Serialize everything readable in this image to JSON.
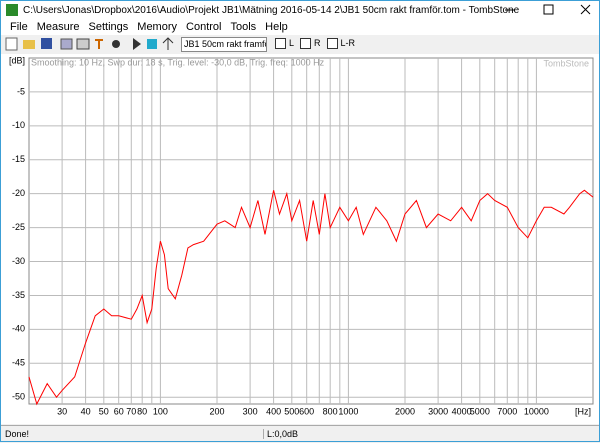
{
  "window": {
    "title": "C:\\Users\\Jonas\\Dropbox\\2016\\Audio\\Projekt JB1\\Mätning 2016-05-14 2\\JB1 50cm rakt framför.tom - TombStone"
  },
  "menu": [
    "File",
    "Measure",
    "Settings",
    "Memory",
    "Control",
    "Tools",
    "Help"
  ],
  "toolbar": {
    "name_field": "JB1 50cm rakt framför",
    "checkboxes": [
      "L",
      "R",
      "L-R"
    ]
  },
  "status": {
    "left": "Done!",
    "level": "L:0,0dB"
  },
  "chart_data": {
    "type": "line",
    "subtitle": "Smoothing: 10 Hz, Swp dur: 18 s, Trig. level: -30,0 dB, Trig. freq: 1000 Hz",
    "watermark": "TombStone",
    "y_label": "[dB]",
    "x_label": "[Hz]",
    "log_x": true,
    "grid": true,
    "xlim": [
      20,
      20000
    ],
    "ylim": [
      -51,
      0
    ],
    "yticks": [
      -5,
      -10,
      -15,
      -20,
      -25,
      -30,
      -35,
      -40,
      -45,
      -50
    ],
    "xticks": [
      30,
      40,
      50,
      60,
      70,
      80,
      100,
      200,
      300,
      400,
      500,
      600,
      800,
      1000,
      2000,
      3000,
      4000,
      5000,
      7000,
      10000
    ],
    "xminor": [
      90,
      700,
      900,
      6000,
      8000,
      9000
    ],
    "series": [
      {
        "name": "L",
        "color": "#ff0000",
        "x": [
          20,
          22,
          25,
          28,
          30,
          35,
          40,
          45,
          50,
          55,
          60,
          70,
          75,
          80,
          85,
          90,
          95,
          100,
          105,
          110,
          120,
          130,
          140,
          150,
          170,
          200,
          220,
          250,
          270,
          300,
          330,
          360,
          400,
          430,
          470,
          500,
          550,
          600,
          650,
          700,
          750,
          800,
          900,
          1000,
          1100,
          1200,
          1400,
          1600,
          1800,
          2000,
          2300,
          2600,
          3000,
          3500,
          4000,
          4500,
          5000,
          5500,
          6000,
          7000,
          8000,
          9000,
          10000,
          11000,
          12000,
          14000,
          15000,
          17000,
          18000,
          20000
        ],
        "values": [
          -47,
          -51,
          -48,
          -50,
          -49,
          -47,
          -42,
          -38,
          -37,
          -38,
          -38,
          -38.5,
          -37,
          -35,
          -39,
          -37,
          -31,
          -27,
          -29,
          -34,
          -35.5,
          -32,
          -28,
          -27.5,
          -27,
          -24.5,
          -24,
          -25,
          -22,
          -25,
          -21,
          -26,
          -19.5,
          -23,
          -20,
          -24,
          -21,
          -27,
          -21,
          -26,
          -20,
          -25,
          -22,
          -24,
          -22,
          -26,
          -22,
          -24,
          -27,
          -23,
          -21,
          -25,
          -23,
          -24,
          -22,
          -24,
          -21,
          -20,
          -21,
          -22,
          -25,
          -26.5,
          -24,
          -22,
          -22,
          -23,
          -22,
          -20,
          -19.5,
          -20.5
        ]
      }
    ]
  }
}
